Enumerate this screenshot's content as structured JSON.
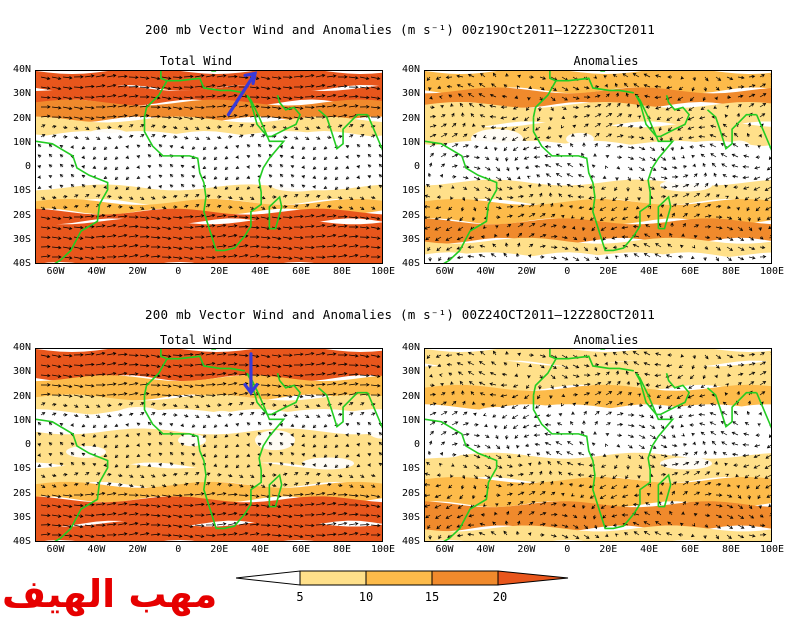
{
  "figures": [
    {
      "title": "200 mb Vector Wind and Anomalies (m s⁻¹) 00z19Oct2011‒12Z23OCT2011",
      "panels": [
        {
          "label": "Total Wind",
          "shading": "total",
          "highlight_arrow": "northeast"
        },
        {
          "label": "Anomalies",
          "shading": "anom1"
        }
      ]
    },
    {
      "title": "200 mb Vector Wind and Anomalies (m s⁻¹) 00Z24OCT2011‒12Z28OCT2011",
      "panels": [
        {
          "label": "Total Wind",
          "shading": "total2",
          "highlight_arrow": "south"
        },
        {
          "label": "Anomalies",
          "shading": "anom2"
        }
      ]
    }
  ],
  "lat_labels": [
    "40N",
    "30N",
    "20N",
    "10N",
    "0",
    "10S",
    "20S",
    "30S",
    "40S"
  ],
  "lon_labels": [
    "60W",
    "40W",
    "20W",
    "0",
    "20E",
    "40E",
    "60E",
    "80E",
    "100E"
  ],
  "colorbar": {
    "ticks": [
      "5",
      "10",
      "15",
      "20"
    ],
    "colors": [
      "#ffffff",
      "#ffe08a",
      "#fdbb4a",
      "#f08a2c",
      "#e8561c"
    ]
  },
  "colors": {
    "coast": "#22cc22",
    "highlight": "#3a3ad8",
    "vector": "#000000"
  },
  "watermark": "مهب الهيف"
}
